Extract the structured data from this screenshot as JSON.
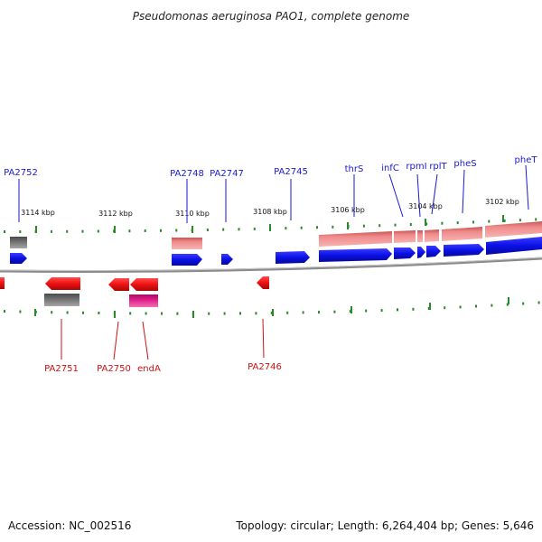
{
  "title": "Pseudomonas aeruginosa PAO1, complete genome",
  "footer": {
    "accession": "Accession: NC_002516",
    "stats": "Topology: circular; Length: 6,264,404 bp; Genes: 5,646"
  },
  "colors": {
    "forward_gene": "#0b10e6",
    "reverse_gene": "#ee1111",
    "forward_rna_band": "#f08a8a",
    "reverse_rna_band": "#e01a8a",
    "pseudo_grey": "#6e6e6e",
    "backbone": "#8a8a8a",
    "ticks": "#2a8a2a",
    "label_top": "#1a1ad0",
    "label_bottom": "#cc1111"
  },
  "kbp_labels": [
    "3114 kbp",
    "3112 kbp",
    "3110 kbp",
    "3108 kbp",
    "3106 kbp",
    "3104 kbp",
    "3102 kbp"
  ],
  "top_labels": [
    "PA2752",
    "PA2748",
    "PA2747",
    "PA2745",
    "thrS",
    "infC",
    "rpmI",
    "rplT",
    "pheS",
    "pheT"
  ],
  "bottom_labels": [
    "PA2751",
    "PA2750",
    "endA",
    "PA2746"
  ]
}
